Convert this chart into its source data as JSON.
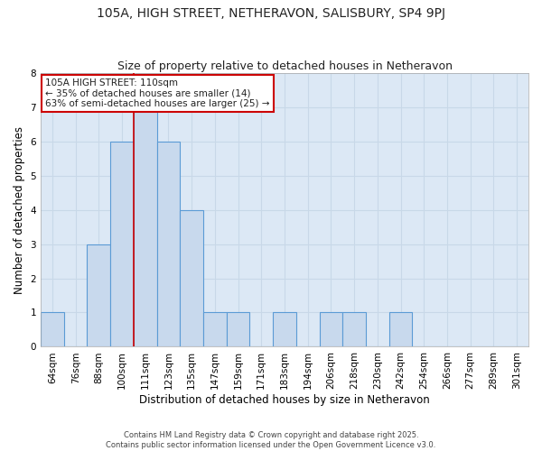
{
  "title": "105A, HIGH STREET, NETHERAVON, SALISBURY, SP4 9PJ",
  "subtitle": "Size of property relative to detached houses in Netheravon",
  "xlabel": "Distribution of detached houses by size in Netheravon",
  "ylabel": "Number of detached properties",
  "footer_line1": "Contains HM Land Registry data © Crown copyright and database right 2025.",
  "footer_line2": "Contains public sector information licensed under the Open Government Licence v3.0.",
  "bins": [
    "64sqm",
    "76sqm",
    "88sqm",
    "100sqm",
    "111sqm",
    "123sqm",
    "135sqm",
    "147sqm",
    "159sqm",
    "171sqm",
    "183sqm",
    "194sqm",
    "206sqm",
    "218sqm",
    "230sqm",
    "242sqm",
    "254sqm",
    "266sqm",
    "277sqm",
    "289sqm",
    "301sqm"
  ],
  "values": [
    1,
    0,
    3,
    6,
    7,
    6,
    4,
    1,
    1,
    0,
    1,
    0,
    1,
    1,
    0,
    1,
    0,
    0,
    0,
    0,
    0
  ],
  "bar_color": "#c8d9ed",
  "bar_edge_color": "#5b9bd5",
  "bar_edge_width": 0.8,
  "grid_color": "#c8d8e8",
  "background_color": "#dce8f5",
  "fig_background_color": "#ffffff",
  "ylim": [
    0,
    8
  ],
  "yticks": [
    0,
    1,
    2,
    3,
    4,
    5,
    6,
    7,
    8
  ],
  "red_line_bin_index": 4,
  "annotation_text": "105A HIGH STREET: 110sqm\n← 35% of detached houses are smaller (14)\n63% of semi-detached houses are larger (25) →",
  "annotation_box_color": "#ffffff",
  "annotation_border_color": "#cc0000",
  "title_fontsize": 10,
  "subtitle_fontsize": 9,
  "axis_label_fontsize": 8.5,
  "tick_fontsize": 7.5,
  "annotation_fontsize": 7.5,
  "footer_fontsize": 6
}
